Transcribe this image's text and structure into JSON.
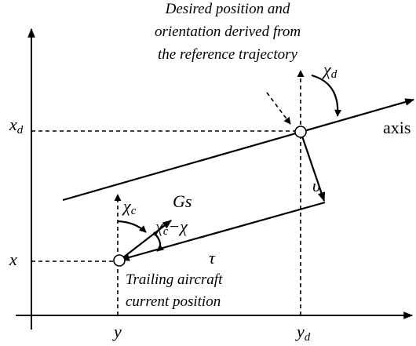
{
  "annotations": {
    "desired": [
      "Desired position and",
      "orientation derived from",
      "the reference trajectory"
    ],
    "trailing": [
      "Trailing aircraft",
      "current position"
    ]
  },
  "labels": {
    "chi_d": [
      "χ",
      "d"
    ],
    "axis": "axis",
    "x_d": [
      "x",
      "d"
    ],
    "upsilon": "υ",
    "chi_c": [
      "χ",
      "c"
    ],
    "gs": "Gs",
    "chi_c_minus_chi": [
      "χ",
      "c",
      "−χ"
    ],
    "tau": "τ",
    "x": "x",
    "y": "y",
    "y_d": [
      "y",
      "d"
    ]
  }
}
